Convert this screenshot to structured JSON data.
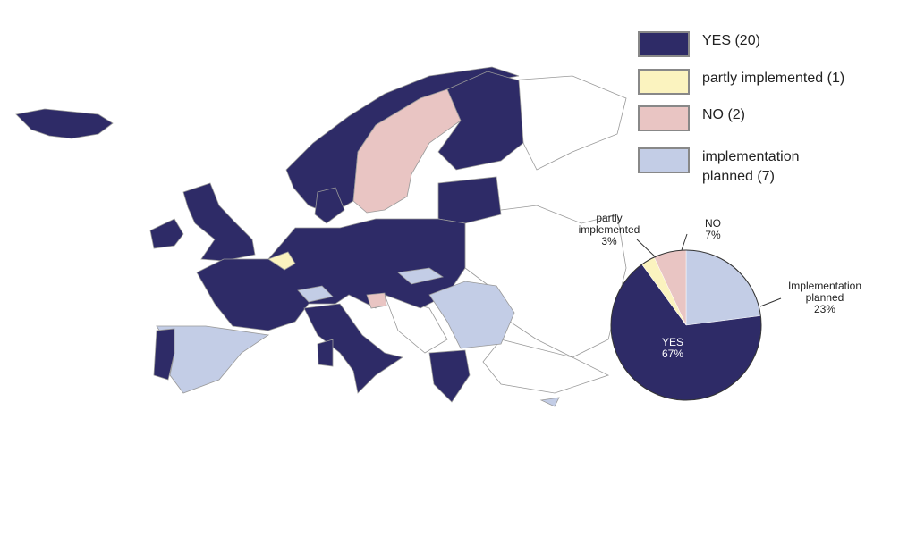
{
  "legend": [
    {
      "label": "YES (20)",
      "color": "#2e2b67"
    },
    {
      "label": "partly implemented (1)",
      "color": "#fbf3bf"
    },
    {
      "label": "NO (2)",
      "color": "#e9c5c3"
    },
    {
      "label": "implementation planned (7)",
      "color": "#c3cde6"
    }
  ],
  "chart_data": {
    "type": "pie",
    "categories": [
      "Implementation planned",
      "YES",
      "partly implemented",
      "NO"
    ],
    "values": [
      23,
      67,
      3,
      7
    ],
    "value_labels": [
      "23%",
      "67%",
      "3%",
      "7%"
    ],
    "colors": [
      "#c3cde6",
      "#2e2b67",
      "#fbf3bf",
      "#e9c5c3"
    ]
  }
}
